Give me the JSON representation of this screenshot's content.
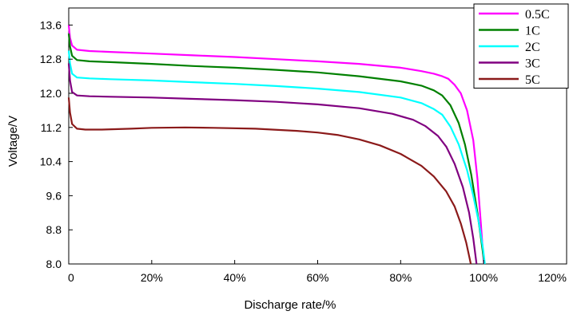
{
  "chart_data": {
    "type": "line",
    "xlabel": "Discharge rate/%",
    "ylabel": "Voltage/V",
    "xlim": [
      0,
      120
    ],
    "ylim": [
      8.0,
      14.0
    ],
    "x_ticks": [
      0,
      20,
      40,
      60,
      80,
      100,
      120
    ],
    "x_tick_labels": [
      "0",
      "20%",
      "40%",
      "60%",
      "80%",
      "100%",
      "120%"
    ],
    "y_ticks": [
      8.0,
      8.8,
      9.6,
      10.4,
      11.2,
      12.0,
      12.8,
      13.6
    ],
    "y_tick_labels": [
      "8.0",
      "8.8",
      "9.6",
      "10.4",
      "11.2",
      "12.0",
      "12.8",
      "13.6"
    ],
    "grid": false,
    "legend_position": "top-right",
    "series": [
      {
        "name": "0.5C",
        "color": "#ff00ff",
        "points": [
          [
            0,
            13.6
          ],
          [
            0.3,
            13.3
          ],
          [
            0.8,
            13.12
          ],
          [
            2,
            13.02
          ],
          [
            5,
            12.99
          ],
          [
            10,
            12.97
          ],
          [
            20,
            12.93
          ],
          [
            30,
            12.89
          ],
          [
            40,
            12.85
          ],
          [
            50,
            12.8
          ],
          [
            60,
            12.75
          ],
          [
            70,
            12.69
          ],
          [
            80,
            12.6
          ],
          [
            85,
            12.52
          ],
          [
            88,
            12.46
          ],
          [
            90,
            12.4
          ],
          [
            91.5,
            12.34
          ],
          [
            93,
            12.2
          ],
          [
            94.5,
            12.0
          ],
          [
            96,
            11.6
          ],
          [
            97.5,
            10.9
          ],
          [
            98.5,
            10.0
          ],
          [
            99.3,
            9.0
          ],
          [
            99.9,
            8.2
          ],
          [
            100.1,
            8.0
          ]
        ]
      },
      {
        "name": "1C",
        "color": "#008000",
        "points": [
          [
            0,
            13.4
          ],
          [
            0.3,
            13.1
          ],
          [
            0.8,
            12.88
          ],
          [
            2,
            12.78
          ],
          [
            5,
            12.75
          ],
          [
            10,
            12.73
          ],
          [
            20,
            12.69
          ],
          [
            30,
            12.64
          ],
          [
            40,
            12.6
          ],
          [
            50,
            12.55
          ],
          [
            60,
            12.49
          ],
          [
            70,
            12.4
          ],
          [
            80,
            12.28
          ],
          [
            85,
            12.18
          ],
          [
            88,
            12.07
          ],
          [
            90,
            11.95
          ],
          [
            92,
            11.72
          ],
          [
            94,
            11.3
          ],
          [
            95.5,
            10.8
          ],
          [
            97,
            10.1
          ],
          [
            98.5,
            9.2
          ],
          [
            99.5,
            8.5
          ],
          [
            100.2,
            8.0
          ]
        ]
      },
      {
        "name": "2C",
        "color": "#00ffff",
        "points": [
          [
            0,
            13.0
          ],
          [
            0.3,
            12.7
          ],
          [
            0.8,
            12.46
          ],
          [
            2,
            12.37
          ],
          [
            5,
            12.35
          ],
          [
            10,
            12.33
          ],
          [
            20,
            12.3
          ],
          [
            30,
            12.26
          ],
          [
            40,
            12.22
          ],
          [
            50,
            12.17
          ],
          [
            60,
            12.11
          ],
          [
            70,
            12.03
          ],
          [
            80,
            11.9
          ],
          [
            85,
            11.77
          ],
          [
            88,
            11.63
          ],
          [
            90,
            11.5
          ],
          [
            92,
            11.22
          ],
          [
            94,
            10.8
          ],
          [
            96,
            10.2
          ],
          [
            97.5,
            9.6
          ],
          [
            98.8,
            9.0
          ],
          [
            99.8,
            8.4
          ],
          [
            100.3,
            8.0
          ]
        ]
      },
      {
        "name": "3C",
        "color": "#800080",
        "points": [
          [
            0,
            12.7
          ],
          [
            0.3,
            12.3
          ],
          [
            0.8,
            12.03
          ],
          [
            2,
            11.95
          ],
          [
            5,
            11.93
          ],
          [
            10,
            11.92
          ],
          [
            20,
            11.9
          ],
          [
            30,
            11.87
          ],
          [
            40,
            11.84
          ],
          [
            50,
            11.8
          ],
          [
            60,
            11.74
          ],
          [
            70,
            11.65
          ],
          [
            78,
            11.52
          ],
          [
            83,
            11.38
          ],
          [
            86,
            11.23
          ],
          [
            89,
            11.0
          ],
          [
            91,
            10.75
          ],
          [
            93,
            10.35
          ],
          [
            95,
            9.8
          ],
          [
            96.5,
            9.2
          ],
          [
            97.5,
            8.6
          ],
          [
            98.3,
            8.0
          ]
        ]
      },
      {
        "name": "5C",
        "color": "#8b1a1a",
        "points": [
          [
            0,
            11.9
          ],
          [
            0.3,
            11.55
          ],
          [
            0.8,
            11.28
          ],
          [
            2,
            11.17
          ],
          [
            4,
            11.15
          ],
          [
            8,
            11.15
          ],
          [
            15,
            11.17
          ],
          [
            20,
            11.19
          ],
          [
            28,
            11.2
          ],
          [
            35,
            11.19
          ],
          [
            45,
            11.17
          ],
          [
            55,
            11.12
          ],
          [
            60,
            11.08
          ],
          [
            65,
            11.02
          ],
          [
            70,
            10.92
          ],
          [
            75,
            10.78
          ],
          [
            80,
            10.58
          ],
          [
            85,
            10.3
          ],
          [
            88,
            10.05
          ],
          [
            91,
            9.7
          ],
          [
            93,
            9.35
          ],
          [
            94.5,
            8.95
          ],
          [
            95.8,
            8.5
          ],
          [
            96.7,
            8.1
          ],
          [
            96.9,
            8.0
          ]
        ]
      }
    ]
  }
}
